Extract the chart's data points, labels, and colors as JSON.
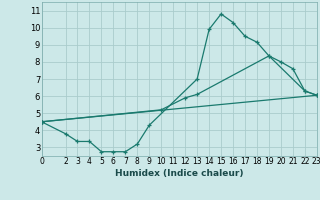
{
  "xlabel": "Humidex (Indice chaleur)",
  "bg_color": "#cce8e8",
  "grid_color": "#aacccc",
  "line_color": "#1a7a6e",
  "xlim": [
    0,
    23
  ],
  "ylim": [
    2.5,
    11.5
  ],
  "xticks": [
    0,
    2,
    3,
    4,
    5,
    6,
    7,
    8,
    9,
    10,
    11,
    12,
    13,
    14,
    15,
    16,
    17,
    18,
    19,
    20,
    21,
    22,
    23
  ],
  "yticks": [
    3,
    4,
    5,
    6,
    7,
    8,
    9,
    10,
    11
  ],
  "line1_x": [
    0,
    2,
    3,
    4,
    5,
    6,
    7,
    8,
    9,
    13,
    14,
    15,
    16,
    17,
    18,
    19,
    20,
    21,
    22,
    23
  ],
  "line1_y": [
    4.5,
    3.8,
    3.35,
    3.35,
    2.75,
    2.75,
    2.75,
    3.2,
    4.3,
    7.0,
    9.9,
    10.8,
    10.3,
    9.5,
    9.15,
    8.35,
    8.0,
    7.6,
    6.3,
    6.05
  ],
  "line2_x": [
    0,
    10,
    12,
    13,
    19,
    22,
    23
  ],
  "line2_y": [
    4.5,
    5.2,
    5.9,
    6.1,
    8.35,
    6.3,
    6.05
  ],
  "line3_x": [
    0,
    23
  ],
  "line3_y": [
    4.5,
    6.05
  ],
  "markersize": 3.5,
  "linewidth": 0.9
}
